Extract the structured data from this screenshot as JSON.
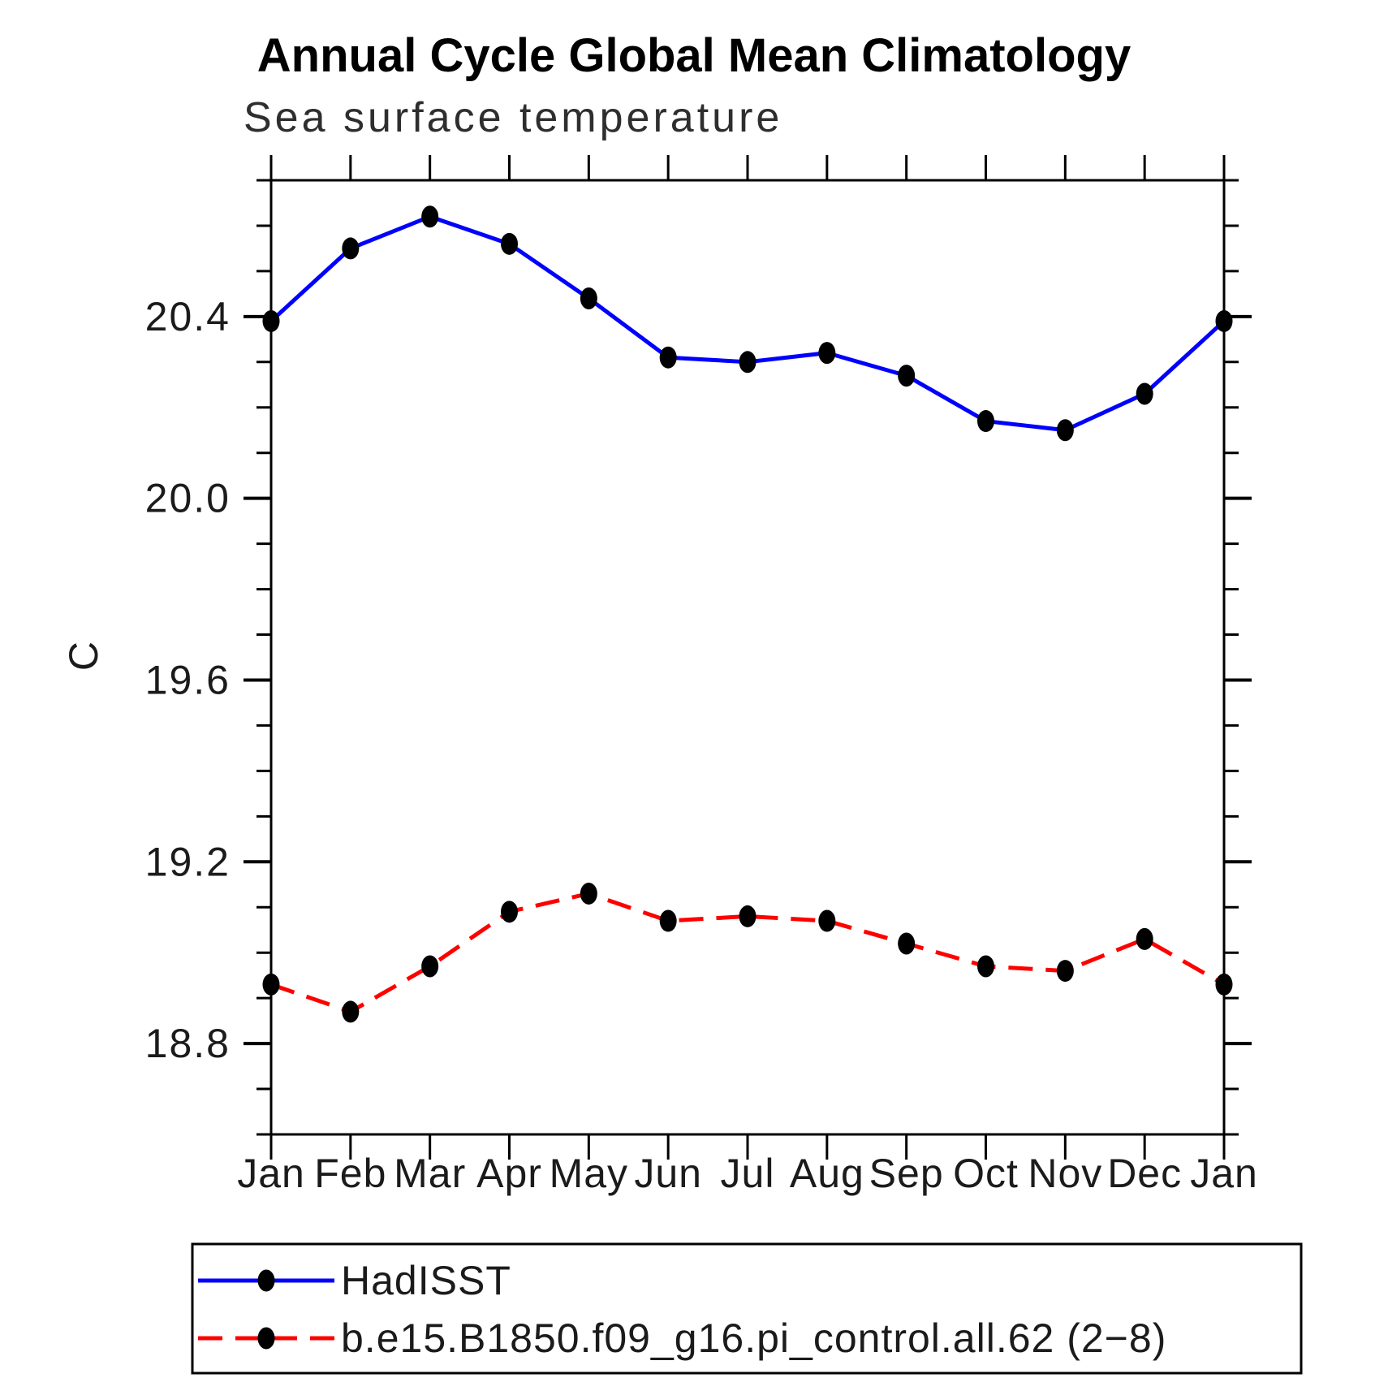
{
  "title": "Annual Cycle Global Mean Climatology",
  "subtitle": "Sea surface temperature",
  "chart_data": {
    "type": "line",
    "categories": [
      "Jan",
      "Feb",
      "Mar",
      "Apr",
      "May",
      "Jun",
      "Jul",
      "Aug",
      "Sep",
      "Oct",
      "Nov",
      "Dec",
      "Jan"
    ],
    "series": [
      {
        "name": "HadISST",
        "color": "#0000ff",
        "line_style": "solid",
        "marker": "filled-circle",
        "marker_color": "#000000",
        "values": [
          20.39,
          20.55,
          20.62,
          20.56,
          20.44,
          20.31,
          20.3,
          20.32,
          20.27,
          20.17,
          20.15,
          20.23,
          20.39
        ]
      },
      {
        "name": "b.e15.B1850.f09_g16.pi_control.all.62 (2−8)",
        "color": "#ff0000",
        "line_style": "dashed",
        "marker": "filled-circle",
        "marker_color": "#000000",
        "values": [
          18.93,
          18.87,
          18.97,
          19.09,
          19.13,
          19.07,
          19.08,
          19.07,
          19.02,
          18.97,
          18.96,
          19.03,
          18.93
        ]
      }
    ],
    "xlabel": "",
    "ylabel": "C",
    "ylim": [
      18.6,
      20.7
    ],
    "yticks": [
      18.8,
      19.2,
      19.6,
      20.0,
      20.4
    ],
    "ytick_labels": [
      "18.8",
      "19.2",
      "19.6",
      "20.0",
      "20.4"
    ],
    "minor_tick_step": 0.1,
    "grid": false,
    "legend_position": "bottom",
    "axis_color": "#000000"
  }
}
